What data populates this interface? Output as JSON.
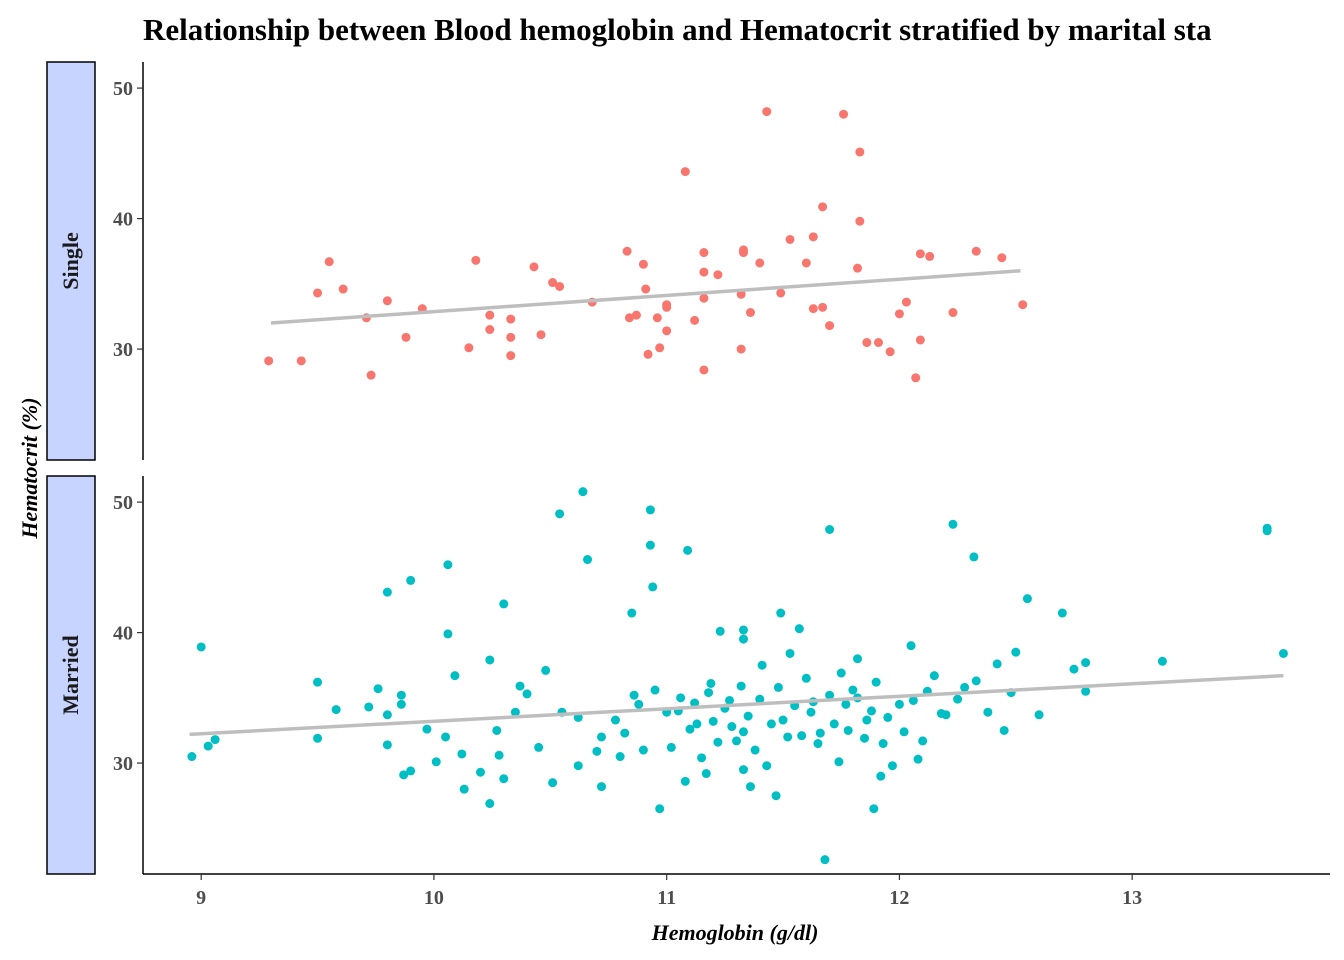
{
  "chart_data": {
    "type": "scatter",
    "title": "Relationship between Blood hemoglobin and Hematocrit stratified by marital sta",
    "xlabel": "Hemoglobin (g/dl)",
    "ylabel": "Hematocrit (%)",
    "xlim": [
      8.75,
      13.85
    ],
    "ylim": [
      21.5,
      52
    ],
    "x_ticks": [
      9,
      10,
      11,
      12,
      13
    ],
    "y_ticks": [
      30,
      40,
      50
    ],
    "grid": false,
    "legend": "none",
    "trend_color": "#bebebe",
    "strip_fill": "#c6d4ff",
    "panels": [
      {
        "label": "Single",
        "color": "#f8766d",
        "trend": {
          "x": [
            9.3,
            12.52
          ],
          "y": [
            32.0,
            36.0
          ]
        },
        "points": [
          [
            9.29,
            29.1
          ],
          [
            9.43,
            29.1
          ],
          [
            9.5,
            34.3
          ],
          [
            9.55,
            36.7
          ],
          [
            9.61,
            34.6
          ],
          [
            9.73,
            28.0
          ],
          [
            9.8,
            33.7
          ],
          [
            9.71,
            32.4
          ],
          [
            9.88,
            30.9
          ],
          [
            9.95,
            33.1
          ],
          [
            10.15,
            30.1
          ],
          [
            10.18,
            36.8
          ],
          [
            10.24,
            32.6
          ],
          [
            10.24,
            31.5
          ],
          [
            10.33,
            32.3
          ],
          [
            10.33,
            29.5
          ],
          [
            10.33,
            30.9
          ],
          [
            10.43,
            36.3
          ],
          [
            10.46,
            31.1
          ],
          [
            10.51,
            35.1
          ],
          [
            10.54,
            34.8
          ],
          [
            10.68,
            33.6
          ],
          [
            10.83,
            37.5
          ],
          [
            10.84,
            32.4
          ],
          [
            10.87,
            32.6
          ],
          [
            10.9,
            36.5
          ],
          [
            10.91,
            34.6
          ],
          [
            10.92,
            29.6
          ],
          [
            10.96,
            32.4
          ],
          [
            10.97,
            30.1
          ],
          [
            11.0,
            31.4
          ],
          [
            11.0,
            33.4
          ],
          [
            11.0,
            33.2
          ],
          [
            11.08,
            43.6
          ],
          [
            11.12,
            32.2
          ],
          [
            11.16,
            33.9
          ],
          [
            11.16,
            37.4
          ],
          [
            11.16,
            35.9
          ],
          [
            11.16,
            28.4
          ],
          [
            11.22,
            35.7
          ],
          [
            11.33,
            37.6
          ],
          [
            11.33,
            37.4
          ],
          [
            11.36,
            32.8
          ],
          [
            11.4,
            36.6
          ],
          [
            11.43,
            48.2
          ],
          [
            11.49,
            34.3
          ],
          [
            11.53,
            38.4
          ],
          [
            11.6,
            36.6
          ],
          [
            11.63,
            38.6
          ],
          [
            11.63,
            33.1
          ],
          [
            11.67,
            33.2
          ],
          [
            11.67,
            40.9
          ],
          [
            11.7,
            31.8
          ],
          [
            11.76,
            48.0
          ],
          [
            11.83,
            45.1
          ],
          [
            11.83,
            39.8
          ],
          [
            11.82,
            36.2
          ],
          [
            11.86,
            30.5
          ],
          [
            11.91,
            30.5
          ],
          [
            11.96,
            29.8
          ],
          [
            12.0,
            32.7
          ],
          [
            12.03,
            33.6
          ],
          [
            12.07,
            27.8
          ],
          [
            12.09,
            30.7
          ],
          [
            12.09,
            37.3
          ],
          [
            12.13,
            37.1
          ],
          [
            12.33,
            37.5
          ],
          [
            12.23,
            32.8
          ],
          [
            12.44,
            37.0
          ],
          [
            12.53,
            33.4
          ],
          [
            11.32,
            34.2
          ],
          [
            11.32,
            30.0
          ]
        ]
      },
      {
        "label": "Married",
        "color": "#00bfc4",
        "trend": {
          "x": [
            8.95,
            13.65
          ],
          "y": [
            32.2,
            36.7
          ]
        },
        "points": [
          [
            8.96,
            30.5
          ],
          [
            9.0,
            38.9
          ],
          [
            9.03,
            31.3
          ],
          [
            9.06,
            31.8
          ],
          [
            9.5,
            36.2
          ],
          [
            9.5,
            31.9
          ],
          [
            9.58,
            34.1
          ],
          [
            9.72,
            34.3
          ],
          [
            9.76,
            35.7
          ],
          [
            9.8,
            33.7
          ],
          [
            9.8,
            43.1
          ],
          [
            9.8,
            31.4
          ],
          [
            9.86,
            35.2
          ],
          [
            9.86,
            34.5
          ],
          [
            9.87,
            29.1
          ],
          [
            9.9,
            44.0
          ],
          [
            9.9,
            29.4
          ],
          [
            9.97,
            32.6
          ],
          [
            10.01,
            30.1
          ],
          [
            10.05,
            32.0
          ],
          [
            10.06,
            45.2
          ],
          [
            10.06,
            39.9
          ],
          [
            10.09,
            36.7
          ],
          [
            10.12,
            30.7
          ],
          [
            10.13,
            28.0
          ],
          [
            10.2,
            29.3
          ],
          [
            10.24,
            37.9
          ],
          [
            10.24,
            26.9
          ],
          [
            10.27,
            32.5
          ],
          [
            10.3,
            42.2
          ],
          [
            10.3,
            28.8
          ],
          [
            10.37,
            35.9
          ],
          [
            10.4,
            35.3
          ],
          [
            10.48,
            37.1
          ],
          [
            10.51,
            28.5
          ],
          [
            10.54,
            49.1
          ],
          [
            10.55,
            33.9
          ],
          [
            10.62,
            29.8
          ],
          [
            10.64,
            50.8
          ],
          [
            10.66,
            45.6
          ],
          [
            10.7,
            30.9
          ],
          [
            10.72,
            28.2
          ],
          [
            10.78,
            33.3
          ],
          [
            10.82,
            32.3
          ],
          [
            10.85,
            41.5
          ],
          [
            10.86,
            35.2
          ],
          [
            10.93,
            49.4
          ],
          [
            10.93,
            46.7
          ],
          [
            10.94,
            43.5
          ],
          [
            10.97,
            26.5
          ],
          [
            11.05,
            34.0
          ],
          [
            11.09,
            46.3
          ],
          [
            11.08,
            28.6
          ],
          [
            11.13,
            33.0
          ],
          [
            11.19,
            36.1
          ],
          [
            11.17,
            29.2
          ],
          [
            11.23,
            40.1
          ],
          [
            11.27,
            34.8
          ],
          [
            11.3,
            31.7
          ],
          [
            11.33,
            40.2
          ],
          [
            11.33,
            39.5
          ],
          [
            11.33,
            32.4
          ],
          [
            11.33,
            29.5
          ],
          [
            11.36,
            28.2
          ],
          [
            11.41,
            37.5
          ],
          [
            11.43,
            29.8
          ],
          [
            11.47,
            27.5
          ],
          [
            11.49,
            41.5
          ],
          [
            11.5,
            33.3
          ],
          [
            11.53,
            38.4
          ],
          [
            11.57,
            40.3
          ],
          [
            11.58,
            32.1
          ],
          [
            11.63,
            34.7
          ],
          [
            11.66,
            32.3
          ],
          [
            11.68,
            22.6
          ],
          [
            11.7,
            47.9
          ],
          [
            11.74,
            30.1
          ],
          [
            11.77,
            34.5
          ],
          [
            11.82,
            38.0
          ],
          [
            11.82,
            35.0
          ],
          [
            11.86,
            33.3
          ],
          [
            11.89,
            26.5
          ],
          [
            11.92,
            29.0
          ],
          [
            11.93,
            31.5
          ],
          [
            11.97,
            29.8
          ],
          [
            12.0,
            34.5
          ],
          [
            12.05,
            39.0
          ],
          [
            12.08,
            30.3
          ],
          [
            12.12,
            35.5
          ],
          [
            12.18,
            33.8
          ],
          [
            12.23,
            48.3
          ],
          [
            12.28,
            35.8
          ],
          [
            12.32,
            45.8
          ],
          [
            12.33,
            36.3
          ],
          [
            12.45,
            32.5
          ],
          [
            12.5,
            38.5
          ],
          [
            12.55,
            42.6
          ],
          [
            12.7,
            41.5
          ],
          [
            12.75,
            37.2
          ],
          [
            12.8,
            37.7
          ],
          [
            12.8,
            35.5
          ],
          [
            13.13,
            37.8
          ],
          [
            13.58,
            47.8
          ],
          [
            13.58,
            48.0
          ],
          [
            13.65,
            38.4
          ],
          [
            10.62,
            33.5
          ],
          [
            10.72,
            32.0
          ],
          [
            10.8,
            30.5
          ],
          [
            10.88,
            34.5
          ],
          [
            10.9,
            31.0
          ],
          [
            10.95,
            35.6
          ],
          [
            11.0,
            33.9
          ],
          [
            11.02,
            31.2
          ],
          [
            11.06,
            35.0
          ],
          [
            11.1,
            32.6
          ],
          [
            11.12,
            34.6
          ],
          [
            11.15,
            30.4
          ],
          [
            11.18,
            35.4
          ],
          [
            11.2,
            33.2
          ],
          [
            11.22,
            31.6
          ],
          [
            11.25,
            34.2
          ],
          [
            11.28,
            32.8
          ],
          [
            11.32,
            35.9
          ],
          [
            11.35,
            33.6
          ],
          [
            11.38,
            31.0
          ],
          [
            11.4,
            34.9
          ],
          [
            11.45,
            33.0
          ],
          [
            11.48,
            35.8
          ],
          [
            11.52,
            32.0
          ],
          [
            11.55,
            34.4
          ],
          [
            11.6,
            36.5
          ],
          [
            11.62,
            33.9
          ],
          [
            11.65,
            31.5
          ],
          [
            11.7,
            35.2
          ],
          [
            11.72,
            33.0
          ],
          [
            11.75,
            36.9
          ],
          [
            11.78,
            32.5
          ],
          [
            11.8,
            35.6
          ],
          [
            11.85,
            31.9
          ],
          [
            11.88,
            34.0
          ],
          [
            11.9,
            36.2
          ],
          [
            11.95,
            33.5
          ],
          [
            12.02,
            32.4
          ],
          [
            12.06,
            34.8
          ],
          [
            12.1,
            31.7
          ],
          [
            12.15,
            36.7
          ],
          [
            12.2,
            33.7
          ],
          [
            12.25,
            34.9
          ],
          [
            12.38,
            33.9
          ],
          [
            12.42,
            37.6
          ],
          [
            12.48,
            35.4
          ],
          [
            12.6,
            33.7
          ],
          [
            10.45,
            31.2
          ],
          [
            10.35,
            33.9
          ],
          [
            10.28,
            30.6
          ]
        ]
      }
    ]
  }
}
